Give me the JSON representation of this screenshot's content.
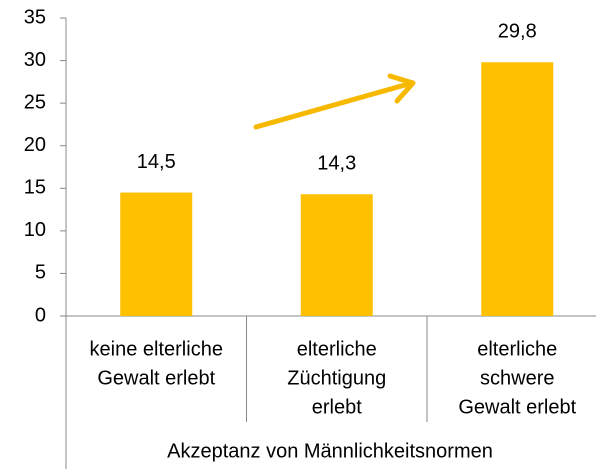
{
  "chart_data": {
    "type": "bar",
    "categories": [
      [
        "keine elterliche",
        "Gewalt erlebt"
      ],
      [
        "elterliche",
        "Züchtigung",
        "erlebt"
      ],
      [
        "elterliche",
        "schwere",
        "Gewalt erlebt"
      ]
    ],
    "values": [
      14.5,
      14.3,
      29.8
    ],
    "value_labels": [
      "14,5",
      "14,3",
      "29,8"
    ],
    "color": "#ffc000",
    "xlabel": "Akzeptanz von Männlichkeitsnormen",
    "ylim": [
      0,
      35
    ],
    "yticks": [
      0,
      5,
      10,
      15,
      20,
      25,
      30,
      35
    ]
  }
}
